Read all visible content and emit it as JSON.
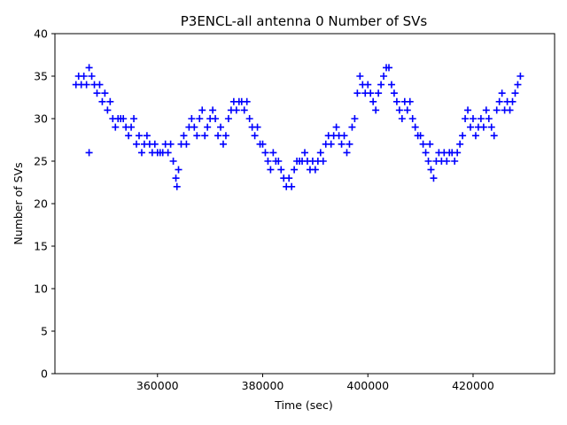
{
  "chart_data": {
    "type": "scatter",
    "title": "P3ENCL-all antenna 0 Number of SVs",
    "xlabel": "Time (sec)",
    "ylabel": "Number of SVs",
    "xlim": [
      340500,
      435500
    ],
    "ylim": [
      0,
      40
    ],
    "x_ticks": [
      360000,
      380000,
      400000,
      420000
    ],
    "x_tick_labels": [
      "360000",
      "380000",
      "400000",
      "420000"
    ],
    "y_ticks": [
      0,
      5,
      10,
      15,
      20,
      25,
      30,
      35,
      40
    ],
    "y_tick_labels": [
      "0",
      "5",
      "10",
      "15",
      "20",
      "25",
      "30",
      "35",
      "40"
    ],
    "grid": false,
    "marker": "+",
    "series": [
      {
        "name": "Number of SVs",
        "color": "#0000ff",
        "points": [
          [
            344500,
            34
          ],
          [
            345000,
            35
          ],
          [
            345500,
            34
          ],
          [
            346000,
            35
          ],
          [
            346500,
            34
          ],
          [
            347000,
            36
          ],
          [
            347500,
            35
          ],
          [
            348000,
            34
          ],
          [
            348500,
            33
          ],
          [
            349000,
            34
          ],
          [
            349500,
            32
          ],
          [
            350000,
            33
          ],
          [
            350500,
            31
          ],
          [
            351000,
            32
          ],
          [
            351500,
            30
          ],
          [
            352000,
            29
          ],
          [
            352500,
            30
          ],
          [
            353000,
            30
          ],
          [
            353500,
            30
          ],
          [
            354000,
            29
          ],
          [
            354500,
            28
          ],
          [
            355000,
            29
          ],
          [
            355500,
            30
          ],
          [
            356000,
            27
          ],
          [
            356500,
            28
          ],
          [
            357000,
            26
          ],
          [
            357500,
            27
          ],
          [
            358000,
            28
          ],
          [
            358500,
            27
          ],
          [
            359000,
            26
          ],
          [
            359500,
            27
          ],
          [
            360000,
            26
          ],
          [
            360500,
            26
          ],
          [
            361000,
            26
          ],
          [
            361500,
            27
          ],
          [
            362000,
            26
          ],
          [
            362500,
            27
          ],
          [
            363000,
            25
          ],
          [
            363500,
            23
          ],
          [
            363700,
            22
          ],
          [
            364000,
            24
          ],
          [
            364500,
            27
          ],
          [
            365000,
            28
          ],
          [
            365500,
            27
          ],
          [
            366000,
            29
          ],
          [
            366500,
            30
          ],
          [
            367000,
            29
          ],
          [
            367500,
            28
          ],
          [
            368000,
            30
          ],
          [
            368500,
            31
          ],
          [
            369000,
            28
          ],
          [
            369500,
            29
          ],
          [
            370000,
            30
          ],
          [
            370500,
            31
          ],
          [
            371000,
            30
          ],
          [
            371500,
            28
          ],
          [
            372000,
            29
          ],
          [
            372500,
            27
          ],
          [
            373000,
            28
          ],
          [
            373500,
            30
          ],
          [
            374000,
            31
          ],
          [
            374500,
            32
          ],
          [
            375000,
            31
          ],
          [
            375500,
            32
          ],
          [
            376000,
            32
          ],
          [
            376500,
            31
          ],
          [
            377000,
            32
          ],
          [
            377500,
            30
          ],
          [
            378000,
            29
          ],
          [
            378500,
            28
          ],
          [
            379000,
            29
          ],
          [
            379500,
            27
          ],
          [
            380000,
            27
          ],
          [
            380500,
            26
          ],
          [
            381000,
            25
          ],
          [
            381500,
            24
          ],
          [
            382000,
            26
          ],
          [
            382500,
            25
          ],
          [
            383000,
            25
          ],
          [
            383500,
            24
          ],
          [
            384000,
            23
          ],
          [
            384500,
            22
          ],
          [
            385000,
            23
          ],
          [
            385500,
            22
          ],
          [
            386000,
            24
          ],
          [
            386500,
            25
          ],
          [
            387000,
            25
          ],
          [
            387500,
            25
          ],
          [
            388000,
            26
          ],
          [
            388500,
            25
          ],
          [
            389000,
            24
          ],
          [
            389500,
            25
          ],
          [
            390000,
            24
          ],
          [
            390500,
            25
          ],
          [
            391000,
            26
          ],
          [
            391500,
            25
          ],
          [
            392000,
            27
          ],
          [
            392500,
            28
          ],
          [
            393000,
            27
          ],
          [
            393500,
            28
          ],
          [
            394000,
            29
          ],
          [
            394500,
            28
          ],
          [
            395000,
            27
          ],
          [
            395500,
            28
          ],
          [
            396000,
            26
          ],
          [
            396500,
            27
          ],
          [
            397000,
            29
          ],
          [
            397500,
            30
          ],
          [
            398000,
            33
          ],
          [
            398500,
            35
          ],
          [
            399000,
            34
          ],
          [
            399500,
            33
          ],
          [
            400000,
            34
          ],
          [
            400500,
            33
          ],
          [
            401000,
            32
          ],
          [
            401500,
            31
          ],
          [
            402000,
            33
          ],
          [
            402500,
            34
          ],
          [
            403000,
            35
          ],
          [
            403500,
            36
          ],
          [
            404000,
            36
          ],
          [
            404500,
            34
          ],
          [
            405000,
            33
          ],
          [
            405500,
            32
          ],
          [
            406000,
            31
          ],
          [
            406500,
            30
          ],
          [
            407000,
            32
          ],
          [
            407500,
            31
          ],
          [
            408000,
            32
          ],
          [
            408500,
            30
          ],
          [
            409000,
            29
          ],
          [
            409500,
            28
          ],
          [
            410000,
            28
          ],
          [
            410500,
            27
          ],
          [
            411000,
            26
          ],
          [
            411500,
            25
          ],
          [
            411800,
            27
          ],
          [
            412000,
            24
          ],
          [
            412500,
            23
          ],
          [
            413000,
            25
          ],
          [
            413500,
            26
          ],
          [
            414000,
            25
          ],
          [
            414500,
            26
          ],
          [
            415000,
            25
          ],
          [
            415500,
            26
          ],
          [
            416000,
            26
          ],
          [
            416500,
            25
          ],
          [
            417000,
            26
          ],
          [
            417500,
            27
          ],
          [
            418000,
            28
          ],
          [
            418500,
            30
          ],
          [
            419000,
            31
          ],
          [
            419500,
            29
          ],
          [
            420000,
            30
          ],
          [
            420500,
            28
          ],
          [
            421000,
            29
          ],
          [
            421500,
            30
          ],
          [
            422000,
            29
          ],
          [
            422500,
            31
          ],
          [
            423000,
            30
          ],
          [
            423500,
            29
          ],
          [
            424000,
            28
          ],
          [
            424500,
            31
          ],
          [
            425000,
            32
          ],
          [
            425500,
            33
          ],
          [
            426000,
            31
          ],
          [
            426500,
            32
          ],
          [
            427000,
            31
          ],
          [
            427500,
            32
          ],
          [
            428000,
            33
          ],
          [
            428500,
            34
          ],
          [
            429000,
            35
          ],
          [
            347000,
            26
          ]
        ]
      }
    ]
  }
}
